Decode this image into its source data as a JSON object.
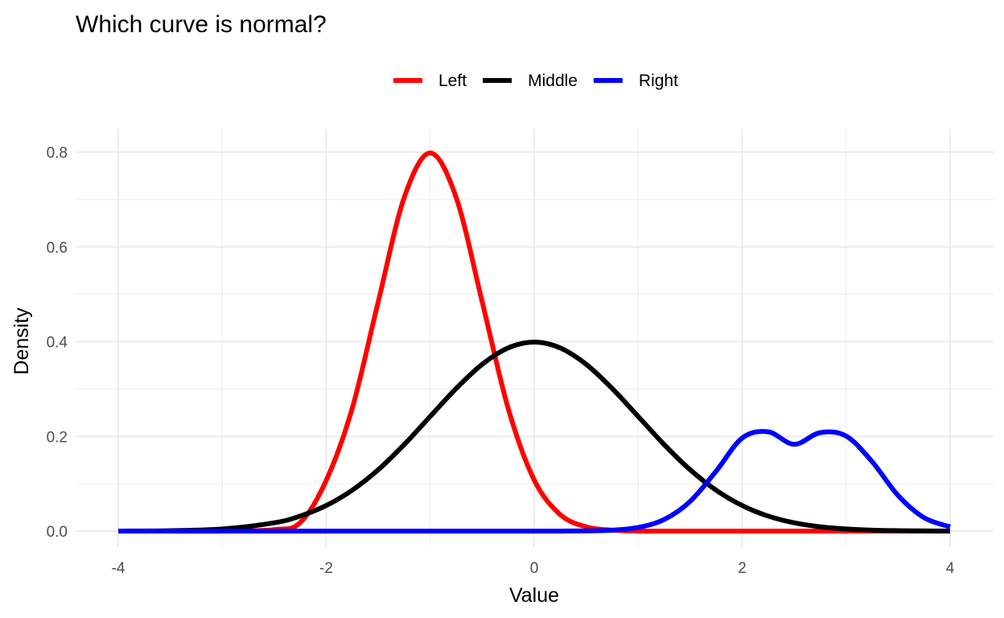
{
  "chart_data": {
    "type": "line",
    "title": "Which curve is normal?",
    "xlabel": "Value",
    "ylabel": "Density",
    "xlim": [
      -4,
      4
    ],
    "ylim": [
      0,
      0.8
    ],
    "x_ticks": [
      -4,
      -2,
      0,
      2,
      4
    ],
    "y_ticks": [
      0.0,
      0.2,
      0.4,
      0.6,
      0.8
    ],
    "x_tick_labels": [
      "-4",
      "-2",
      "0",
      "2",
      "4"
    ],
    "y_tick_labels": [
      "0.0",
      "0.2",
      "0.4",
      "0.6",
      "0.8"
    ],
    "grid": true,
    "legend_position": "top",
    "x": [
      -4.0,
      -3.5,
      -3.0,
      -2.5,
      -2.25,
      -2.0,
      -1.75,
      -1.5,
      -1.25,
      -1.0,
      -0.75,
      -0.5,
      -0.25,
      0.0,
      0.25,
      0.5,
      0.75,
      1.0,
      1.25,
      1.5,
      1.75,
      2.0,
      2.25,
      2.5,
      2.75,
      3.0,
      3.25,
      3.5,
      3.75,
      4.0
    ],
    "series": [
      {
        "name": "Left",
        "color": "#ff0000",
        "values": [
          0.0,
          0.0,
          0.0,
          0.003,
          0.018,
          0.107,
          0.259,
          0.484,
          0.704,
          0.798,
          0.704,
          0.484,
          0.259,
          0.108,
          0.035,
          0.009,
          0.002,
          0.0,
          0.0,
          0.0,
          0.0,
          0.0,
          0.0,
          0.0,
          0.0,
          0.0,
          0.0,
          0.0,
          0.0,
          0.0
        ]
      },
      {
        "name": "Middle",
        "color": "#000000",
        "values": [
          0.0001,
          0.0009,
          0.0044,
          0.0175,
          0.0317,
          0.054,
          0.0863,
          0.1295,
          0.1826,
          0.242,
          0.3011,
          0.3521,
          0.3867,
          0.3989,
          0.3867,
          0.3521,
          0.3011,
          0.242,
          0.1826,
          0.1295,
          0.0863,
          0.054,
          0.0317,
          0.0175,
          0.0091,
          0.0044,
          0.002,
          0.0009,
          0.0004,
          0.0001
        ]
      },
      {
        "name": "Right",
        "color": "#0000ff",
        "values": [
          0.0,
          0.0,
          0.0,
          0.0,
          0.0,
          0.0,
          0.0,
          0.0,
          0.0,
          0.0,
          0.0,
          0.0,
          0.0,
          0.0,
          0.0,
          0.0005,
          0.0019,
          0.0077,
          0.0245,
          0.0627,
          0.1265,
          0.1963,
          0.2096,
          0.1832,
          0.2078,
          0.2006,
          0.1466,
          0.0751,
          0.0283,
          0.0089
        ]
      }
    ]
  }
}
